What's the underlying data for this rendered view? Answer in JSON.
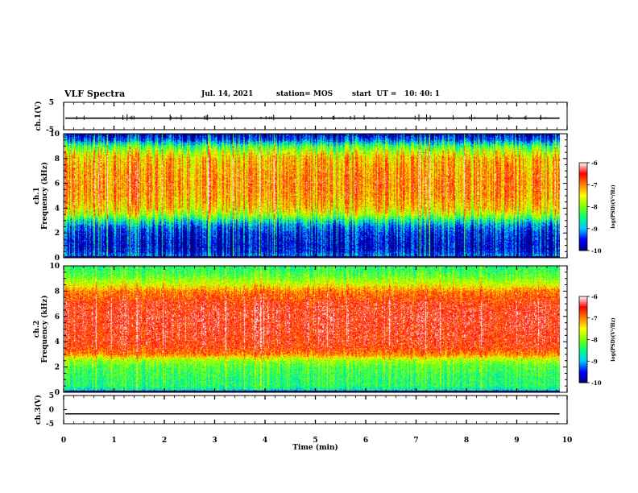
{
  "header": {
    "title": "VLF Spectra",
    "date": "Jul. 14, 2021",
    "station": "station= MOS",
    "start": "start  UT =   10: 40: 1"
  },
  "chart_data": {
    "type": "heatmap",
    "xlabel": "Time  (min)",
    "xlim": [
      0,
      10
    ],
    "xticks": [
      "0",
      "1",
      "2",
      "3",
      "4",
      "5",
      "6",
      "7",
      "8",
      "9",
      "10"
    ],
    "data_end_min": 9.85,
    "panels": [
      {
        "id": "ch1-voltage",
        "ylabel": "ch.1(V)",
        "type": "line",
        "ylim": [
          -5,
          5
        ],
        "yticks": [
          "5",
          "-5"
        ],
        "baseline_v": -0.8
      },
      {
        "id": "ch1-spectrogram",
        "ylabel_top": "ch.1",
        "ylabel": "Frequency (kHz)",
        "ylim_khz": [
          0,
          10
        ],
        "yticks": [
          "0",
          "2",
          "4",
          "6",
          "8",
          "10"
        ],
        "band_profile_log_psd": [
          [
            0.0,
            -9.0
          ],
          [
            0.5,
            -9.6
          ],
          [
            1.0,
            -9.7
          ],
          [
            1.5,
            -9.6
          ],
          [
            2.0,
            -9.5
          ],
          [
            2.5,
            -9.2
          ],
          [
            3.0,
            -8.6
          ],
          [
            3.5,
            -7.8
          ],
          [
            4.0,
            -7.4
          ],
          [
            5.0,
            -7.1
          ],
          [
            6.0,
            -7.0
          ],
          [
            7.0,
            -7.1
          ],
          [
            8.0,
            -7.3
          ],
          [
            8.5,
            -7.7
          ],
          [
            9.0,
            -8.3
          ],
          [
            9.5,
            -9.3
          ],
          [
            10.0,
            -9.8
          ]
        ]
      },
      {
        "id": "ch2-spectrogram",
        "ylabel_top": "ch.2",
        "ylabel": "Frequency (kHz)",
        "ylim_khz": [
          0,
          10
        ],
        "yticks": [
          "0",
          "2",
          "4",
          "6",
          "8",
          "10"
        ],
        "band_profile_log_psd": [
          [
            0.0,
            -8.9
          ],
          [
            0.5,
            -8.4
          ],
          [
            1.0,
            -8.4
          ],
          [
            1.5,
            -8.3
          ],
          [
            2.0,
            -8.2
          ],
          [
            2.5,
            -7.9
          ],
          [
            3.0,
            -7.0
          ],
          [
            3.5,
            -6.7
          ],
          [
            4.0,
            -6.6
          ],
          [
            6.0,
            -6.5
          ],
          [
            7.0,
            -6.6
          ],
          [
            7.5,
            -6.8
          ],
          [
            8.0,
            -7.0
          ],
          [
            8.5,
            -7.6
          ],
          [
            9.0,
            -8.0
          ],
          [
            9.5,
            -8.3
          ],
          [
            10.0,
            -8.4
          ]
        ]
      },
      {
        "id": "ch3-voltage",
        "ylabel": "ch.3(V)",
        "type": "line",
        "ylim": [
          -5,
          5
        ],
        "yticks": [
          "5",
          "0",
          "-5"
        ],
        "baseline_v": -1.5
      }
    ],
    "colorbar": {
      "label": "log(PSD)(V²/Hz)",
      "range": [
        -10,
        -6
      ],
      "ticks": [
        "-6",
        "-7",
        "-8",
        "-9",
        "-10"
      ],
      "colormap": [
        "#00007f",
        "#0000ff",
        "#00c8ff",
        "#00ff80",
        "#80ff00",
        "#ffff00",
        "#ff8000",
        "#ff0000",
        "#ffffff"
      ]
    }
  }
}
